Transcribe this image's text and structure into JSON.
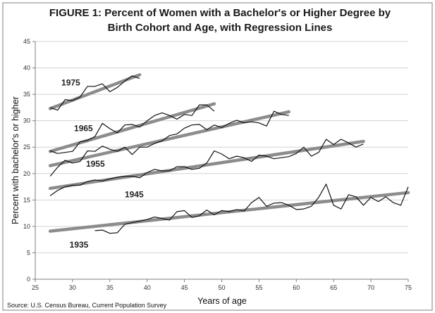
{
  "chart_data": {
    "type": "line",
    "title_lines": [
      "FIGURE 1: Percent of Women with a Bachelor's or Higher Degree by",
      "Birth Cohort and Age, with Regression Lines"
    ],
    "xlabel": "Years of age",
    "ylabel": "Percent with bachelor's or higher",
    "source": "Source: U.S. Census Bureau, Current Population Survey",
    "xlim": [
      25,
      75
    ],
    "ylim": [
      0,
      45
    ],
    "xticks": [
      25,
      30,
      35,
      40,
      45,
      50,
      55,
      60,
      65,
      70,
      75
    ],
    "yticks": [
      0,
      5,
      10,
      15,
      20,
      25,
      30,
      35,
      40,
      45
    ],
    "grid": "horizontal",
    "legend": "none",
    "series": [
      {
        "name": "1975",
        "label_at": [
          28.5,
          36.7
        ],
        "x": [
          27,
          28,
          29,
          30,
          31,
          32,
          33,
          34,
          35,
          36,
          37,
          38,
          39
        ],
        "y": [
          32.5,
          32.0,
          34.0,
          33.8,
          34.5,
          36.5,
          36.5,
          37.0,
          35.5,
          36.3,
          37.5,
          38.5,
          38.0
        ],
        "regression": [
          [
            27,
            32.3
          ],
          [
            39,
            38.7
          ]
        ]
      },
      {
        "name": "1965",
        "label_at": [
          30.2,
          28.0
        ],
        "x": [
          27,
          28,
          29,
          30,
          31,
          32,
          33,
          34,
          35,
          36,
          37,
          38,
          39,
          40,
          41,
          42,
          43,
          44,
          45,
          46,
          47,
          48,
          49
        ],
        "y": [
          24.3,
          23.8,
          24.0,
          24.2,
          26.0,
          26.3,
          27.0,
          29.5,
          28.5,
          27.7,
          29.2,
          29.3,
          28.8,
          30.0,
          31.0,
          31.5,
          31.0,
          30.3,
          31.2,
          31.0,
          33.0,
          33.0,
          31.8
        ],
        "regression": [
          [
            27,
            24.2
          ],
          [
            49,
            33.2
          ]
        ]
      },
      {
        "name": "1955",
        "label_at": [
          31.8,
          21.3
        ],
        "x": [
          27,
          28,
          29,
          30,
          31,
          32,
          33,
          34,
          35,
          36,
          37,
          38,
          39,
          40,
          41,
          42,
          43,
          44,
          45,
          46,
          47,
          48,
          49,
          50,
          51,
          52,
          53,
          54,
          55,
          56,
          57,
          58,
          59
        ],
        "y": [
          19.5,
          21.2,
          22.5,
          22.0,
          22.3,
          24.3,
          24.2,
          25.2,
          24.6,
          24.2,
          25.0,
          23.6,
          25.0,
          25.0,
          25.7,
          26.2,
          27.2,
          27.5,
          28.6,
          29.2,
          29.3,
          28.3,
          29.2,
          28.7,
          29.5,
          30.1,
          29.6,
          29.8,
          29.6,
          29.0,
          31.8,
          31.2,
          31.0
        ],
        "regression": [
          [
            27,
            21.5
          ],
          [
            59,
            31.7
          ]
        ]
      },
      {
        "name": "1945",
        "label_at": [
          37.0,
          15.5
        ],
        "x": [
          27,
          28,
          29,
          30,
          31,
          32,
          33,
          34,
          35,
          36,
          37,
          38,
          39,
          40,
          41,
          42,
          43,
          44,
          45,
          46,
          47,
          48,
          49,
          50,
          51,
          52,
          53,
          54,
          55,
          56,
          57,
          58,
          59,
          60,
          61,
          62,
          63,
          64,
          65,
          66,
          67,
          68,
          69
        ],
        "y": [
          15.8,
          16.8,
          17.5,
          17.8,
          17.8,
          18.5,
          18.8,
          18.6,
          19.0,
          19.3,
          19.5,
          19.5,
          19.2,
          20.2,
          20.8,
          20.5,
          20.5,
          21.3,
          21.3,
          20.8,
          21.0,
          22.0,
          24.3,
          23.7,
          22.8,
          23.3,
          23.0,
          22.3,
          23.5,
          23.3,
          22.8,
          23.0,
          23.2,
          23.8,
          25.0,
          23.3,
          24.0,
          26.5,
          25.5,
          26.5,
          25.8,
          25.0,
          25.6
        ],
        "regression": [
          [
            27,
            17.2
          ],
          [
            69,
            26.1
          ]
        ]
      },
      {
        "name": "1935",
        "label_at": [
          29.6,
          6.0
        ],
        "x": [
          33,
          34,
          35,
          36,
          37,
          38,
          39,
          40,
          41,
          42,
          43,
          44,
          45,
          46,
          47,
          48,
          49,
          50,
          51,
          52,
          53,
          54,
          55,
          56,
          57,
          58,
          59,
          60,
          61,
          62,
          63,
          64,
          65,
          66,
          67,
          68,
          69,
          70,
          71,
          72,
          73,
          74,
          75
        ],
        "y": [
          9.2,
          9.3,
          8.7,
          8.8,
          10.4,
          10.7,
          11.0,
          11.3,
          11.8,
          11.5,
          11.2,
          12.8,
          13.0,
          11.7,
          12.0,
          13.1,
          12.2,
          13.0,
          12.8,
          13.2,
          12.9,
          14.5,
          15.5,
          13.8,
          14.4,
          14.5,
          14.0,
          13.2,
          13.3,
          13.8,
          15.5,
          18.0,
          14.0,
          13.3,
          16.0,
          15.6,
          14.0,
          15.5,
          14.7,
          15.6,
          14.5,
          14.0,
          17.5
        ],
        "regression": [
          [
            27,
            9.1
          ],
          [
            75,
            16.4
          ]
        ]
      }
    ],
    "colors": {
      "data_line": "#111111",
      "regression_line": "#8c8c8c",
      "grid": "#d4d4d4",
      "frame": "#7f7f7f"
    }
  }
}
